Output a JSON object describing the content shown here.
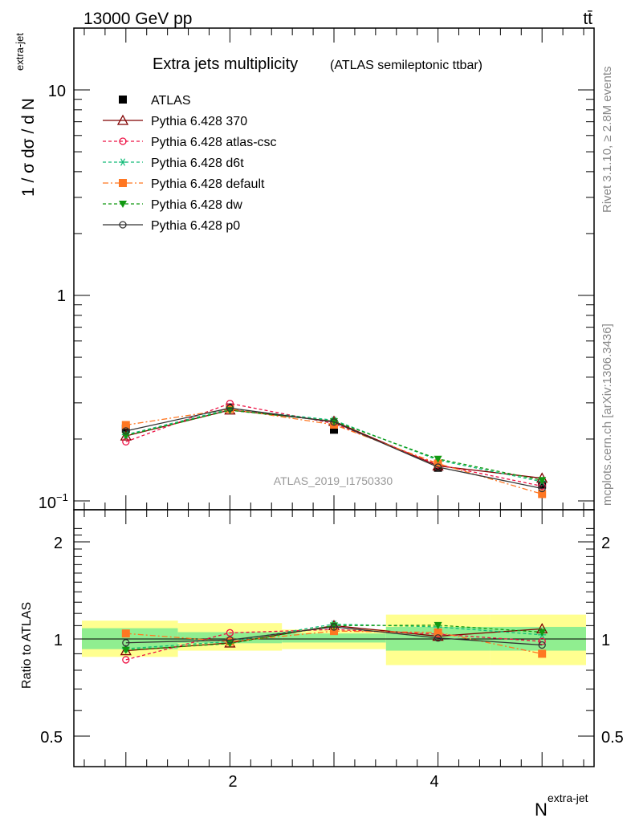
{
  "header": {
    "left": "13000 GeV pp",
    "right": "tt̄"
  },
  "side_labels": {
    "rivet": "Rivet 3.1.10, ≥ 2.8M events",
    "mcplots": "mcplots.cern.ch [arXiv:1306.3436]"
  },
  "chart_data": [
    {
      "type": "line",
      "title": "Extra jets multiplicity",
      "subtitle": "(ATLAS semileptonic ttbar)",
      "analysis_label": "ATLAS_2019_I1750330",
      "ylabel": "1 / σ dσ / d N",
      "ylabel_superscript": "extra-jet",
      "yscale": "log",
      "ylim": [
        0.1,
        20
      ],
      "xlim": [
        0.5,
        5.5
      ],
      "ytick_labels": [
        "10",
        "1",
        "10"
      ],
      "ytick_exponent": "−1",
      "legend_placement": "top-left",
      "x": [
        1,
        2,
        3,
        4,
        5
      ],
      "series": [
        {
          "name": "ATLAS",
          "color": "#000000",
          "marker": "square",
          "dash": "solid",
          "line": false,
          "values": [
            0.225,
            0.285,
            0.222,
            0.145,
            0.12
          ]
        },
        {
          "name": "Pythia 6.428 370",
          "color": "#800000",
          "marker": "triangle-open",
          "dash": "solid",
          "line": true,
          "values": [
            0.207,
            0.277,
            0.244,
            0.148,
            0.129
          ]
        },
        {
          "name": "Pythia 6.428 atlas-csc",
          "color": "#ee1144",
          "marker": "circle-open",
          "dash": "dashed",
          "line": true,
          "values": [
            0.194,
            0.298,
            0.238,
            0.15,
            0.118
          ]
        },
        {
          "name": "Pythia 6.428 d6t",
          "color": "#11bb77",
          "marker": "asterisk",
          "dash": "dashed",
          "line": true,
          "values": [
            0.21,
            0.28,
            0.247,
            0.158,
            0.124
          ]
        },
        {
          "name": "Pythia 6.428 default",
          "color": "#ff7722",
          "marker": "square",
          "dash": "dashdot",
          "line": true,
          "values": [
            0.234,
            0.28,
            0.235,
            0.152,
            0.108
          ]
        },
        {
          "name": "Pythia 6.428 dw",
          "color": "#119911",
          "marker": "triangle-down",
          "dash": "dashed",
          "line": true,
          "values": [
            0.208,
            0.276,
            0.244,
            0.16,
            0.126
          ]
        },
        {
          "name": "Pythia 6.428 p0",
          "color": "#333333",
          "marker": "circle-open",
          "dash": "solid",
          "line": true,
          "values": [
            0.219,
            0.283,
            0.242,
            0.146,
            0.115
          ]
        }
      ]
    },
    {
      "type": "line",
      "ylabel": "Ratio to ATLAS",
      "xlabel": "N",
      "xlabel_superscript": "extra-jet",
      "ylim": [
        0.4,
        2.3
      ],
      "xlim": [
        0.5,
        5.5
      ],
      "yticks": [
        0.5,
        1,
        2
      ],
      "ytick_labels": [
        "0.5",
        "1",
        "2"
      ],
      "xticks": [
        2,
        4
      ],
      "xtick_labels": [
        "2",
        "4"
      ],
      "bands": {
        "x_edges": [
          0.5,
          1.5,
          2.5,
          3.5,
          4.5,
          5.5
        ],
        "green_lo": [
          0.93,
          0.97,
          0.975,
          0.92,
          0.92
        ],
        "green_hi": [
          1.08,
          1.05,
          1.04,
          1.09,
          1.09
        ],
        "yellow_lo": [
          0.88,
          0.92,
          0.93,
          0.83,
          0.83
        ],
        "yellow_hi": [
          1.14,
          1.12,
          1.07,
          1.19,
          1.19
        ],
        "green_color": "#90ee90",
        "yellow_color": "#ffff90"
      },
      "series": [
        {
          "name": "Pythia 6.428 370",
          "values": [
            0.92,
            0.972,
            1.1,
            1.02,
            1.075
          ]
        },
        {
          "name": "Pythia 6.428 atlas-csc",
          "values": [
            0.862,
            1.045,
            1.07,
            1.035,
            0.983
          ]
        },
        {
          "name": "Pythia 6.428 d6t",
          "values": [
            0.933,
            0.982,
            1.112,
            1.09,
            1.03
          ]
        },
        {
          "name": "Pythia 6.428 default",
          "values": [
            1.04,
            0.982,
            1.058,
            1.048,
            0.9
          ]
        },
        {
          "name": "Pythia 6.428 dw",
          "values": [
            0.924,
            0.968,
            1.1,
            1.103,
            1.05
          ]
        },
        {
          "name": "Pythia 6.428 p0",
          "values": [
            0.973,
            0.993,
            1.09,
            1.007,
            0.958
          ]
        }
      ]
    }
  ]
}
